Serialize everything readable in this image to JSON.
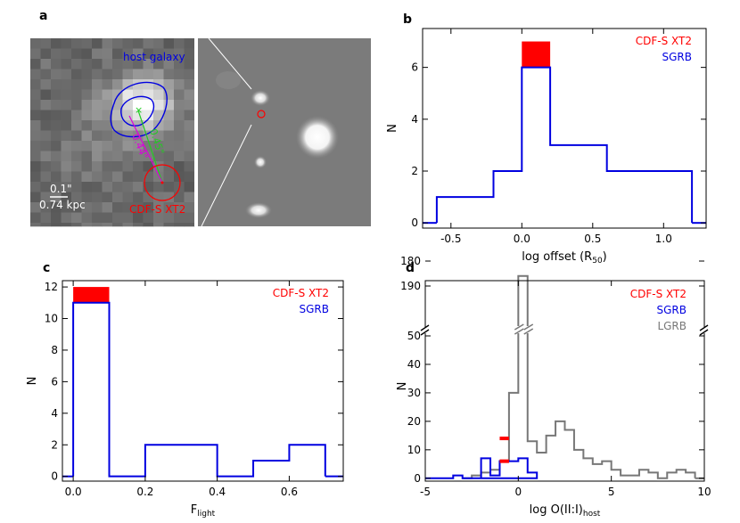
{
  "panels": {
    "a": {
      "letter": "a",
      "host_label": "host galaxy",
      "scale_angle": "0.1\"",
      "scale_kpc": "0.74 kpc",
      "source_label": "CDF-S XT2",
      "offset_green": "0.45\"",
      "offset_magenta": "0.44\""
    },
    "b": {
      "letter": "b"
    },
    "c": {
      "letter": "c"
    },
    "d": {
      "letter": "d"
    }
  },
  "colors": {
    "sgrb": "#0000e0",
    "xt2": "#ff0000",
    "lgrb": "#777777",
    "green": "#22cc22",
    "magenta": "#dd00dd"
  },
  "chart_data": [
    {
      "panel": "b",
      "type": "bar",
      "xlabel_main": "log offset (R",
      "xlabel_sub": "50",
      "xlabel_end": ")",
      "ylabel": "N",
      "xlim": [
        -0.7,
        1.3
      ],
      "ylim": [
        -0.2,
        7.5
      ],
      "xticks": [
        -0.5,
        0.0,
        0.5,
        1.0
      ],
      "xtick_labels": [
        "-0.5",
        "0.0",
        "0.5",
        "1.0"
      ],
      "yticks": [
        0,
        2,
        4,
        6
      ],
      "ytick_labels": [
        "0",
        "2",
        "4",
        "6"
      ],
      "legend": [
        {
          "label": "CDF-S XT2",
          "color": "#ff0000"
        },
        {
          "label": "SGRB",
          "color": "#0000e0"
        }
      ],
      "series": [
        {
          "name": "SGRB",
          "edges": [
            -0.6,
            -0.2,
            0.0,
            0.2,
            0.6,
            1.2
          ],
          "values": [
            1,
            2,
            6,
            3,
            2
          ]
        }
      ],
      "highlight": {
        "name": "CDF-S XT2",
        "x0": 0.0,
        "x1": 0.2,
        "y0": 6,
        "y1": 7
      }
    },
    {
      "panel": "c",
      "type": "bar",
      "xlabel_main": "F",
      "xlabel_sub": "light",
      "xlabel_end": "",
      "ylabel": "N",
      "xlim": [
        -0.03,
        0.75
      ],
      "ylim": [
        -0.3,
        12.4
      ],
      "xticks": [
        0.0,
        0.2,
        0.4,
        0.6
      ],
      "xtick_labels": [
        "0.0",
        "0.2",
        "0.4",
        "0.6"
      ],
      "yticks": [
        0,
        2,
        4,
        6,
        8,
        10,
        12
      ],
      "ytick_labels": [
        "0",
        "2",
        "4",
        "6",
        "8",
        "10",
        "12"
      ],
      "legend": [
        {
          "label": "CDF-S XT2",
          "color": "#ff0000"
        },
        {
          "label": "SGRB",
          "color": "#0000e0"
        }
      ],
      "series": [
        {
          "name": "SGRB",
          "edges": [
            0.0,
            0.1,
            0.2,
            0.3,
            0.4,
            0.5,
            0.6,
            0.7
          ],
          "values": [
            11,
            0,
            2,
            2,
            0,
            1,
            2
          ]
        }
      ],
      "highlight": {
        "name": "CDF-S XT2",
        "x0": 0.0,
        "x1": 0.1,
        "y0": 11,
        "y1": 12
      }
    },
    {
      "panel": "d",
      "type": "bar",
      "xlabel_main": "log O(II:I)",
      "xlabel_sub": "host",
      "xlabel_end": "",
      "ylabel": "N",
      "xlim": [
        -5,
        10
      ],
      "ylim_lower": [
        -1,
        52
      ],
      "ylim_upper": [
        170,
        190
      ],
      "xticks": [
        -5,
        0,
        5,
        10
      ],
      "xtick_labels": [
        "-5",
        "0",
        "5",
        "10"
      ],
      "yticks_lower": [
        0,
        10,
        20,
        30,
        40,
        50
      ],
      "ytick_labels_lower": [
        "0",
        "10",
        "20",
        "30",
        "40",
        "50"
      ],
      "yticks_upper": [
        180,
        190
      ],
      "ytick_labels_upper": [
        "180",
        "190"
      ],
      "legend": [
        {
          "label": "CDF-S XT2",
          "color": "#ff0000"
        },
        {
          "label": "SGRB",
          "color": "#0000e0"
        },
        {
          "label": "LGRB",
          "color": "#777777"
        }
      ],
      "series": [
        {
          "name": "SGRB",
          "edges": [
            -3.5,
            -3,
            -2.5,
            -2,
            -1.5,
            -1,
            -0.5,
            0,
            0.5,
            1
          ],
          "values": [
            1,
            0,
            0,
            7,
            1,
            6,
            6,
            7,
            2
          ]
        },
        {
          "name": "LGRB",
          "edges": [
            -3,
            -2.5,
            -2,
            -1.5,
            -1,
            -0.5,
            0,
            0.5,
            1,
            1.5,
            2,
            2.5,
            3,
            3.5,
            4,
            4.5,
            5,
            5.5,
            6,
            6.5,
            7,
            7.5,
            8,
            8.5,
            9,
            9.5
          ],
          "values": [
            0,
            1,
            2,
            3,
            6,
            30,
            186,
            13,
            9,
            15,
            20,
            17,
            10,
            7,
            5,
            6,
            3,
            1,
            1,
            3,
            2,
            0,
            2,
            3,
            2
          ]
        }
      ],
      "highlight_marks": [
        {
          "name": "CDF-S XT2",
          "x0": -1.0,
          "x1": -0.5,
          "y": 14
        },
        {
          "name": "CDF-S XT2",
          "x0": -1.0,
          "x1": -0.5,
          "y": 6
        }
      ]
    }
  ]
}
